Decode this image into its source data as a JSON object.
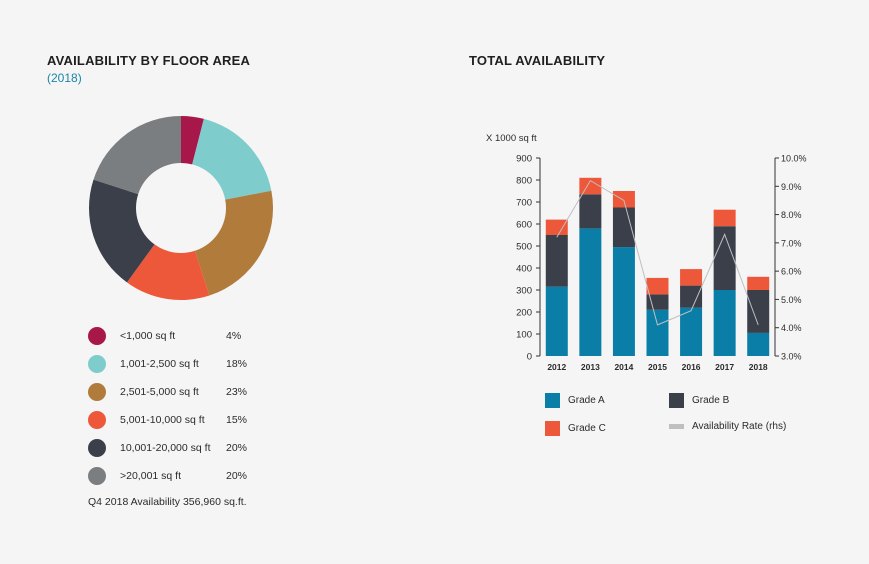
{
  "left": {
    "title": "AVAILABILITY BY FLOOR AREA",
    "subtitle": "(2018)",
    "footnote": "Q4 2018 Availability 356,960 sq.ft."
  },
  "right": {
    "title": "TOTAL AVAILABILITY",
    "unit_label": "X 1000 sq ft"
  },
  "colors": {
    "crimson": "#a8174a",
    "teal": "#7fcccc",
    "bronze": "#b07b3b",
    "orange": "#ee583a",
    "navy": "#3a3f4a",
    "gray": "#7b7e80",
    "gradeA": "#0b7ea7",
    "gradeB": "#3a3f4a",
    "gradeC": "#ee583a",
    "rate": "#bfbfbf"
  },
  "chart_data": [
    {
      "type": "pie",
      "title": "AVAILABILITY BY FLOOR AREA",
      "subtitle": "(2018)",
      "categories": [
        "<1,000 sq ft",
        "1,001-2,500 sq ft",
        "2,501-5,000 sq ft",
        "5,001-10,000 sq ft",
        "10,001-20,000 sq ft",
        ">20,001 sq ft"
      ],
      "values": [
        4,
        18,
        23,
        15,
        20,
        20
      ],
      "labels": [
        "4%",
        "18%",
        "23%",
        "15%",
        "20%",
        "20%"
      ],
      "colors": [
        "#a8174a",
        "#7fcccc",
        "#b07b3b",
        "#ee583a",
        "#3a3f4a",
        "#7b7e80"
      ],
      "donut": true,
      "legend": "bottom"
    },
    {
      "type": "bar",
      "stacked": true,
      "title": "TOTAL AVAILABILITY",
      "ylabel": "X 1000 sq ft",
      "categories": [
        "2012",
        "2013",
        "2014",
        "2015",
        "2016",
        "2017",
        "2018"
      ],
      "series": [
        {
          "name": "Grade A",
          "values": [
            315,
            580,
            495,
            210,
            220,
            300,
            105
          ]
        },
        {
          "name": "Grade B",
          "values": [
            235,
            155,
            180,
            70,
            100,
            290,
            195
          ]
        },
        {
          "name": "Grade C",
          "values": [
            70,
            75,
            75,
            75,
            75,
            75,
            60
          ]
        }
      ],
      "line_series": {
        "name": "Availability Rate (rhs)",
        "axis": "right",
        "values": [
          7.2,
          9.2,
          8.5,
          4.1,
          4.6,
          7.3,
          4.1
        ]
      },
      "ylim": [
        0,
        900
      ],
      "yticks": [
        0,
        100,
        200,
        300,
        400,
        500,
        600,
        700,
        800,
        900
      ],
      "y2lim": [
        3.0,
        10.0
      ],
      "y2ticks": [
        "3.0%",
        "4.0%",
        "5.0%",
        "6.0%",
        "7.0%",
        "8.0%",
        "9.0%",
        "10.0%"
      ],
      "legend": "bottom",
      "grid": false
    }
  ]
}
